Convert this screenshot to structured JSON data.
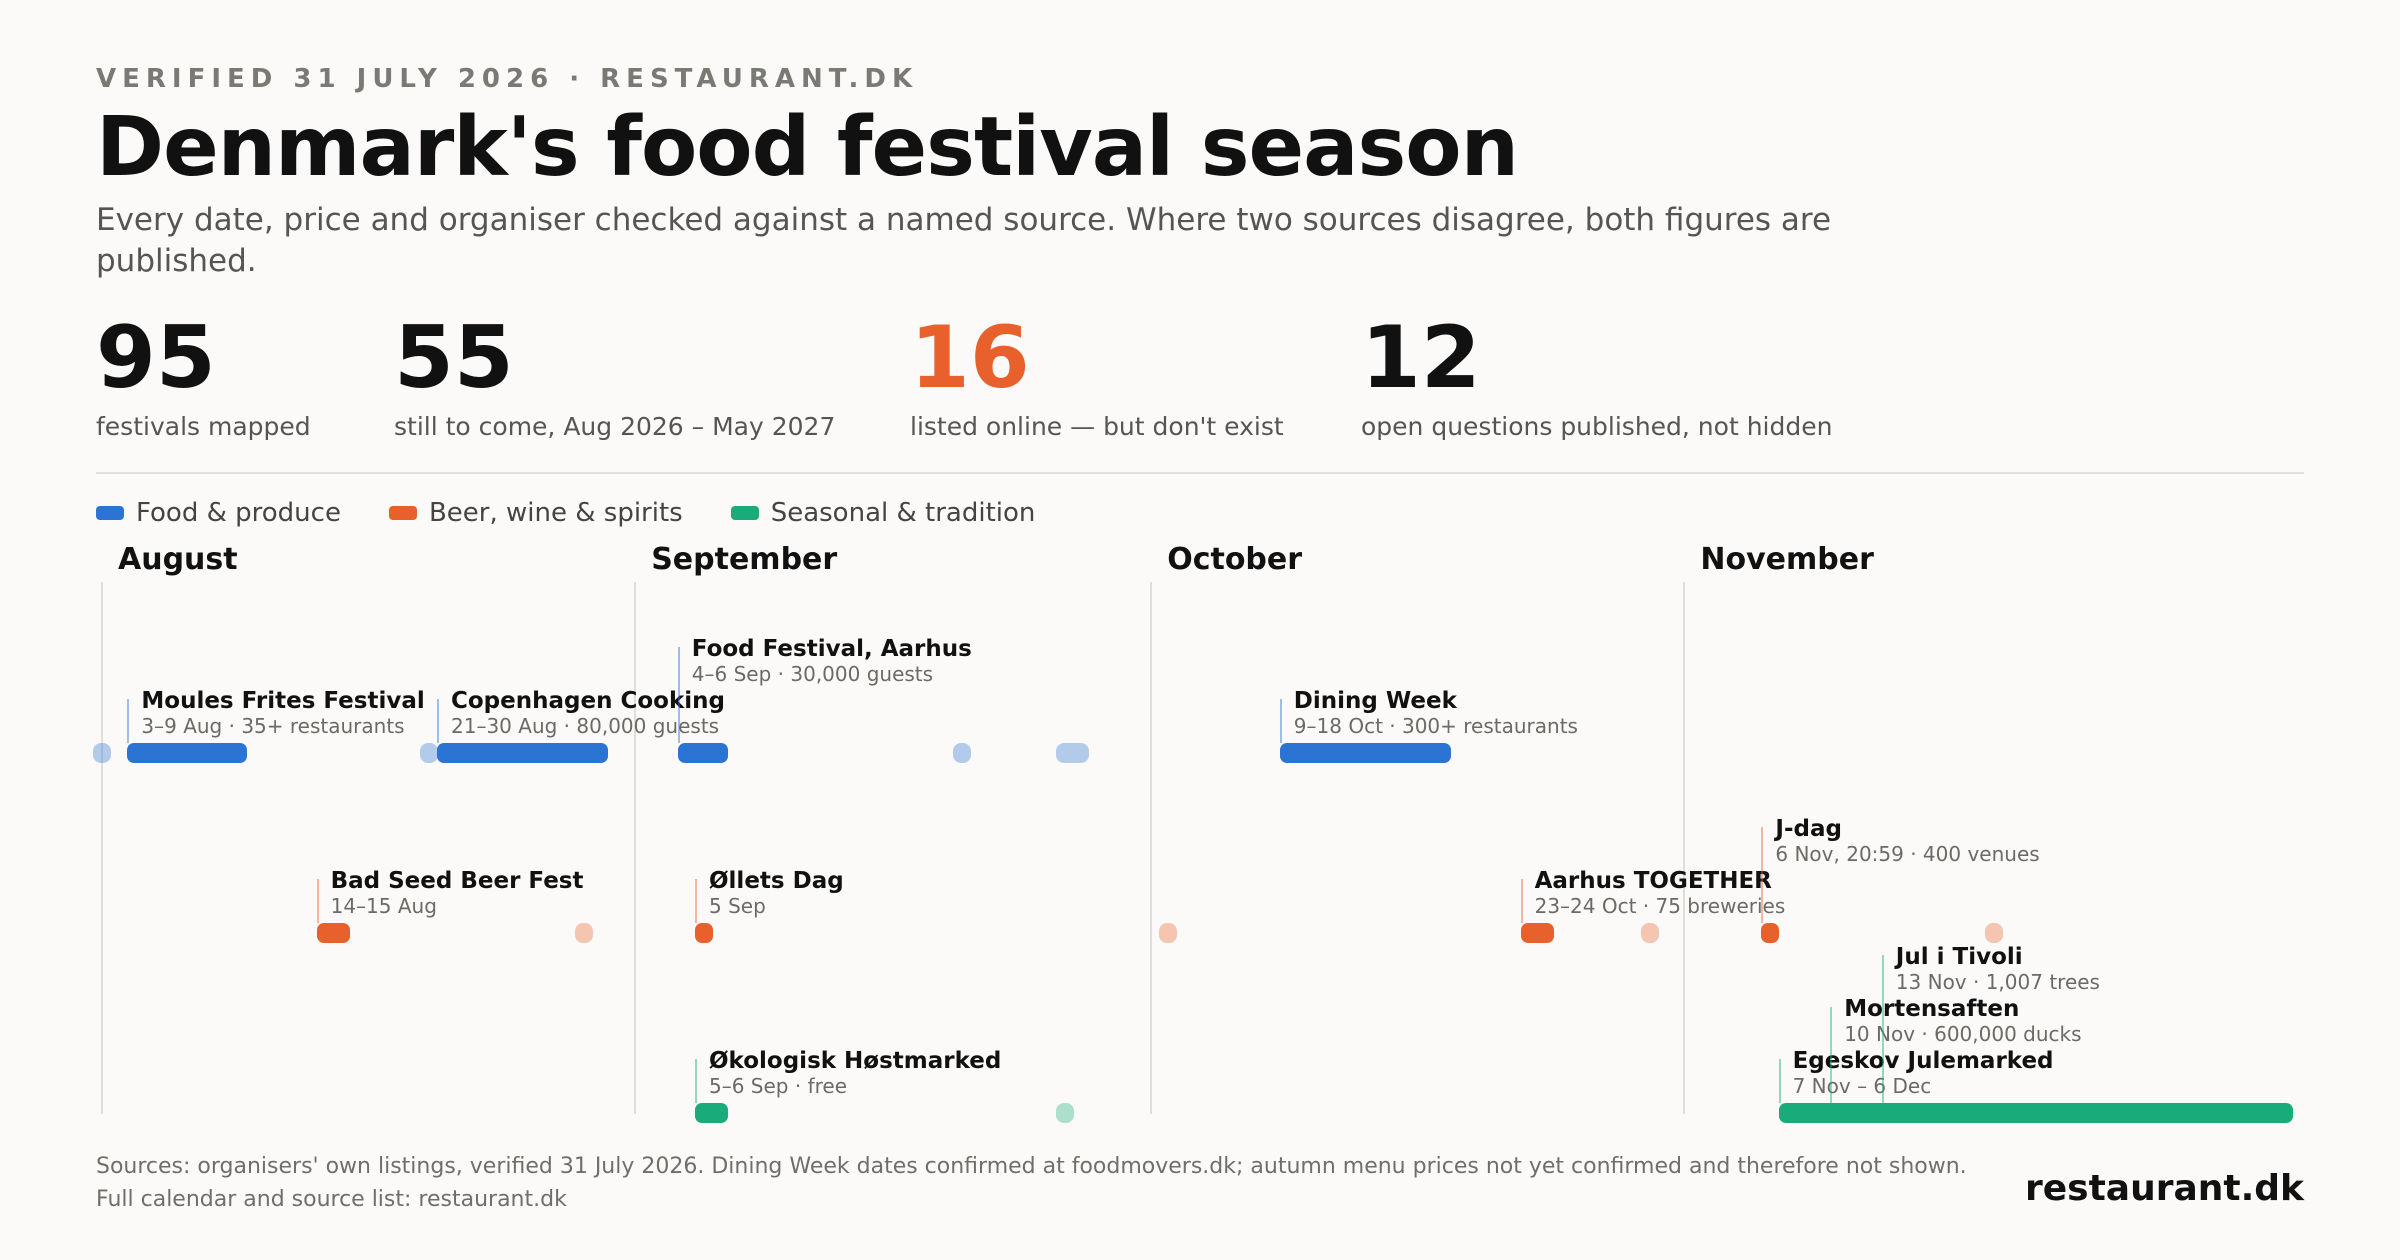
{
  "header": {
    "kicker": "VERIFIED 31 JULY 2026 · RESTAURANT.DK",
    "title": "Denmark's food festival season",
    "subtitle": "Every date, price and organiser checked against a named source. Where two sources disagree, both figures are published."
  },
  "stats": [
    {
      "value": "95",
      "label": "festivals mapped",
      "accent": false
    },
    {
      "value": "55",
      "label": "still to come, Aug 2026 – May 2027",
      "accent": false
    },
    {
      "value": "16",
      "label": "listed online — but don't exist",
      "accent": true
    },
    {
      "value": "12",
      "label": "open questions published, not hidden",
      "accent": false
    }
  ],
  "legend": [
    {
      "label": "Food & produce",
      "color": "#2b74d4"
    },
    {
      "label": "Beer, wine & spirits",
      "color": "#e8612c"
    },
    {
      "label": "Seasonal & tradition",
      "color": "#1aab7a"
    }
  ],
  "chart_data": {
    "type": "timeline",
    "x_axis": {
      "start": "2026-08-01",
      "end": "2026-12-06",
      "months": [
        "August",
        "September",
        "October",
        "November"
      ]
    },
    "rows": [
      "Food & produce",
      "Beer, wine & spirits",
      "Seasonal & tradition"
    ],
    "events": [
      {
        "name": "Moules Frites Festival",
        "detail": "3–9 Aug · 35+ restaurants",
        "category": 0,
        "start": "2026-08-03",
        "end": "2026-08-09",
        "label_level": 1
      },
      {
        "name": "Copenhagen Cooking",
        "detail": "21–30 Aug · 80,000 guests",
        "category": 0,
        "start": "2026-08-21",
        "end": "2026-08-30",
        "label_level": 1
      },
      {
        "name": "Food Festival, Aarhus",
        "detail": "4–6 Sep · 30,000 guests",
        "category": 0,
        "start": "2026-09-04",
        "end": "2026-09-06",
        "label_level": 2
      },
      {
        "name": "Dining Week",
        "detail": "9–18 Oct · 300+ restaurants",
        "category": 0,
        "start": "2026-10-09",
        "end": "2026-10-18",
        "label_level": 1
      },
      {
        "name": "Bad Seed Beer Fest",
        "detail": "14–15 Aug",
        "category": 1,
        "start": "2026-08-14",
        "end": "2026-08-15",
        "label_level": 1
      },
      {
        "name": "Øllets Dag",
        "detail": "5 Sep",
        "category": 1,
        "start": "2026-09-05",
        "end": "2026-09-05",
        "label_level": 1
      },
      {
        "name": "Aarhus TOGETHER",
        "detail": "23–24 Oct · 75 breweries",
        "category": 1,
        "start": "2026-10-23",
        "end": "2026-10-24",
        "label_level": 1
      },
      {
        "name": "J-dag",
        "detail": "6 Nov, 20:59 · 400 venues",
        "category": 1,
        "start": "2026-11-06",
        "end": "2026-11-06",
        "label_level": 2
      },
      {
        "name": "Økologisk Høstmarked",
        "detail": "5–6 Sep · free",
        "category": 2,
        "start": "2026-09-05",
        "end": "2026-09-06",
        "label_level": 1
      },
      {
        "name": "Egeskov Julemarked",
        "detail": "7 Nov – 6 Dec",
        "category": 2,
        "start": "2026-11-07",
        "end": "2026-12-06",
        "label_level": 1
      },
      {
        "name": "Mortensaften",
        "detail": "10 Nov · 600,000 ducks",
        "category": 2,
        "start": "2026-11-10",
        "end": "2026-11-10",
        "label_level": 2,
        "bar": false
      },
      {
        "name": "Jul i Tivoli",
        "detail": "13 Nov · 1,007 trees",
        "category": 2,
        "start": "2026-11-13",
        "end": "2026-11-13",
        "label_level": 3,
        "bar": false
      }
    ],
    "unlabelled_markers": [
      {
        "category": 0,
        "start": "2026-08-01",
        "end": "2026-08-01"
      },
      {
        "category": 0,
        "start": "2026-08-20",
        "end": "2026-08-20"
      },
      {
        "category": 0,
        "start": "2026-09-20",
        "end": "2026-09-20"
      },
      {
        "category": 0,
        "start": "2026-09-26",
        "end": "2026-09-27"
      },
      {
        "category": 1,
        "start": "2026-08-29",
        "end": "2026-08-29"
      },
      {
        "category": 1,
        "start": "2026-10-02",
        "end": "2026-10-02"
      },
      {
        "category": 1,
        "start": "2026-10-30",
        "end": "2026-10-30"
      },
      {
        "category": 1,
        "start": "2026-11-19",
        "end": "2026-11-19"
      },
      {
        "category": 2,
        "start": "2026-09-26",
        "end": "2026-09-26"
      }
    ]
  },
  "footer": {
    "sources": "Sources: organisers' own listings, verified 31 July 2026. Dining Week dates confirmed at foodmovers.dk; autumn menu prices not yet confirmed and therefore not shown. Full calendar and source list: restaurant.dk",
    "brand": "restaurant.dk"
  }
}
